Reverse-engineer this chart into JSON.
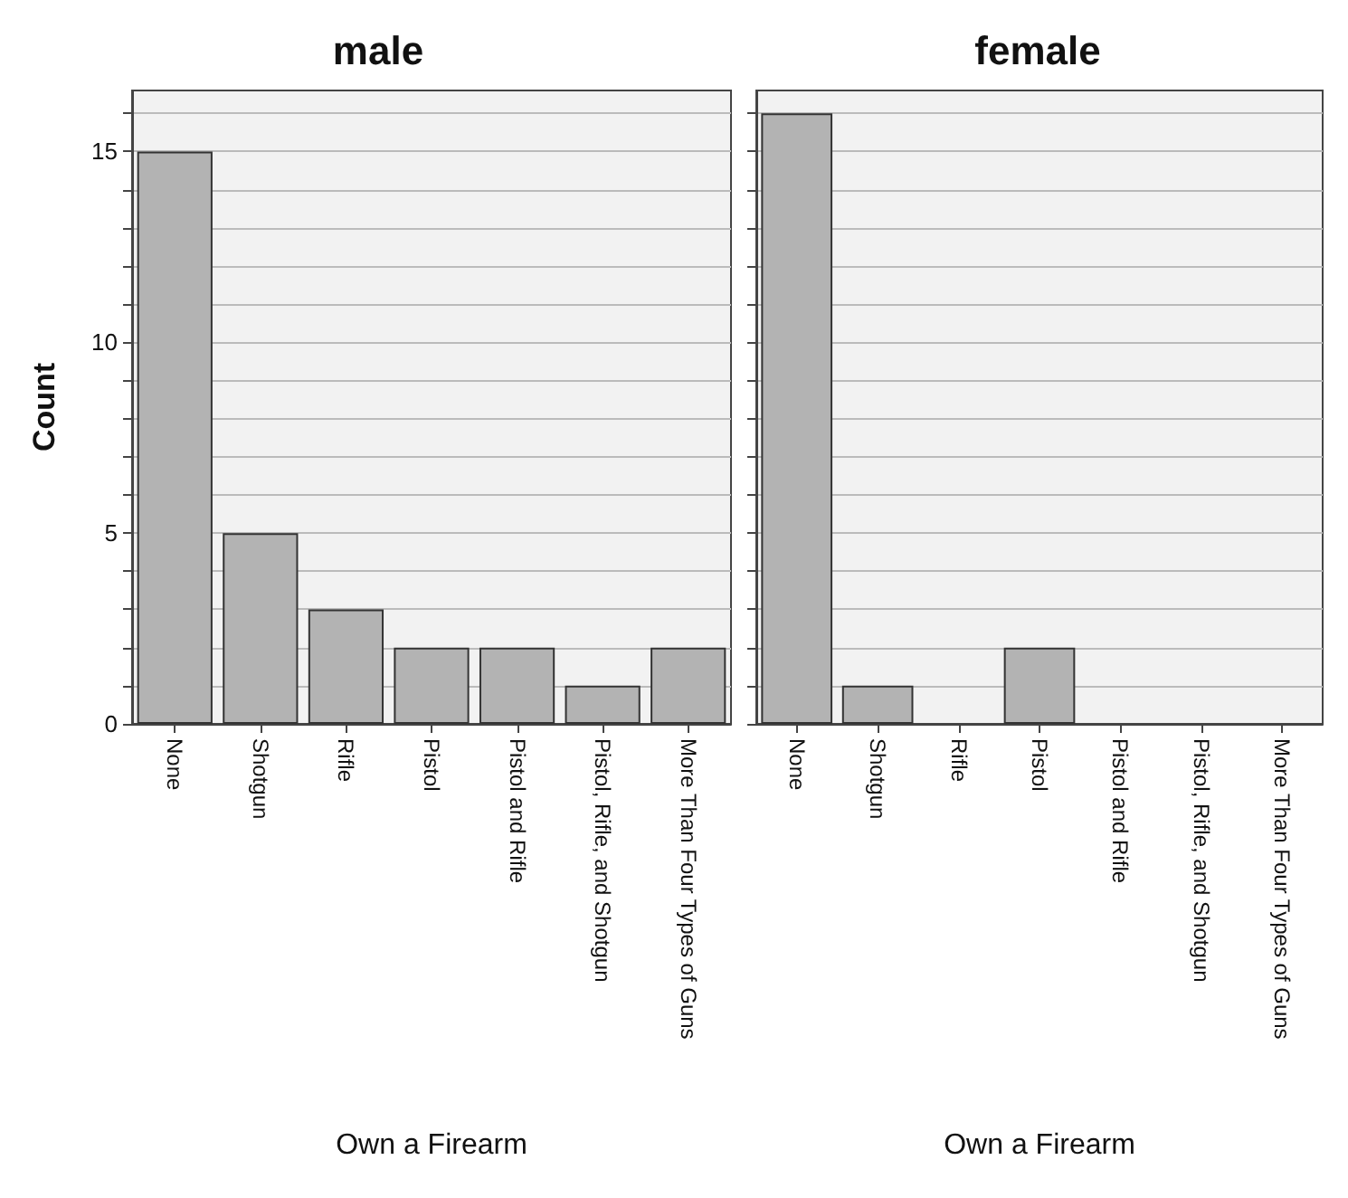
{
  "chart_data": [
    {
      "type": "bar",
      "title": "male",
      "xlabel": "Own a Firearm",
      "ylabel": "Count",
      "categories": [
        "None",
        "Shotgun",
        "Rifle",
        "Pistol",
        "Pistol and Rifle",
        "Pistol, Rifle, and Shotgun",
        "More Than Four Types of Guns"
      ],
      "values": [
        15,
        5,
        3,
        2,
        2,
        1,
        2
      ],
      "color": "#b3b3b3",
      "ylim": [
        0,
        16.6
      ],
      "yticks": [
        0,
        {
          "value": 1,
          "label": null
        },
        {
          "value": 2,
          "label": null
        },
        {
          "value": 3,
          "label": null
        },
        {
          "value": 4,
          "label": null
        },
        5,
        {
          "value": 6,
          "label": null
        },
        {
          "value": 7,
          "label": null
        },
        {
          "value": 8,
          "label": null
        },
        {
          "value": 9,
          "label": null
        },
        10,
        {
          "value": 11,
          "label": null
        },
        {
          "value": 12,
          "label": null
        },
        {
          "value": 13,
          "label": null
        },
        {
          "value": 14,
          "label": null
        },
        15,
        {
          "value": 16,
          "label": null
        }
      ],
      "grid": "y"
    },
    {
      "type": "bar",
      "title": "female",
      "xlabel": "Own a Firearm",
      "categories": [
        "None",
        "Shotgun",
        "Rifle",
        "Pistol",
        "Pistol and Rifle",
        "Pistol, Rifle, and Shotgun",
        "More Than Four Types of Guns"
      ],
      "values": [
        16,
        1,
        0,
        2,
        0,
        0,
        0
      ],
      "color": "#b3b3b3",
      "ylim": [
        0,
        16.6
      ],
      "yticks": [
        0,
        {
          "value": 1,
          "label": null
        },
        {
          "value": 2,
          "label": null
        },
        {
          "value": 3,
          "label": null
        },
        {
          "value": 4,
          "label": null
        },
        5,
        {
          "value": 6,
          "label": null
        },
        {
          "value": 7,
          "label": null
        },
        {
          "value": 8,
          "label": null
        },
        {
          "value": 9,
          "label": null
        },
        10,
        {
          "value": 11,
          "label": null
        },
        {
          "value": 12,
          "label": null
        },
        {
          "value": 13,
          "label": null
        },
        {
          "value": 14,
          "label": null
        },
        15,
        {
          "value": 16,
          "label": null
        }
      ],
      "grid": "y",
      "tick_labels": "x"
    }
  ]
}
